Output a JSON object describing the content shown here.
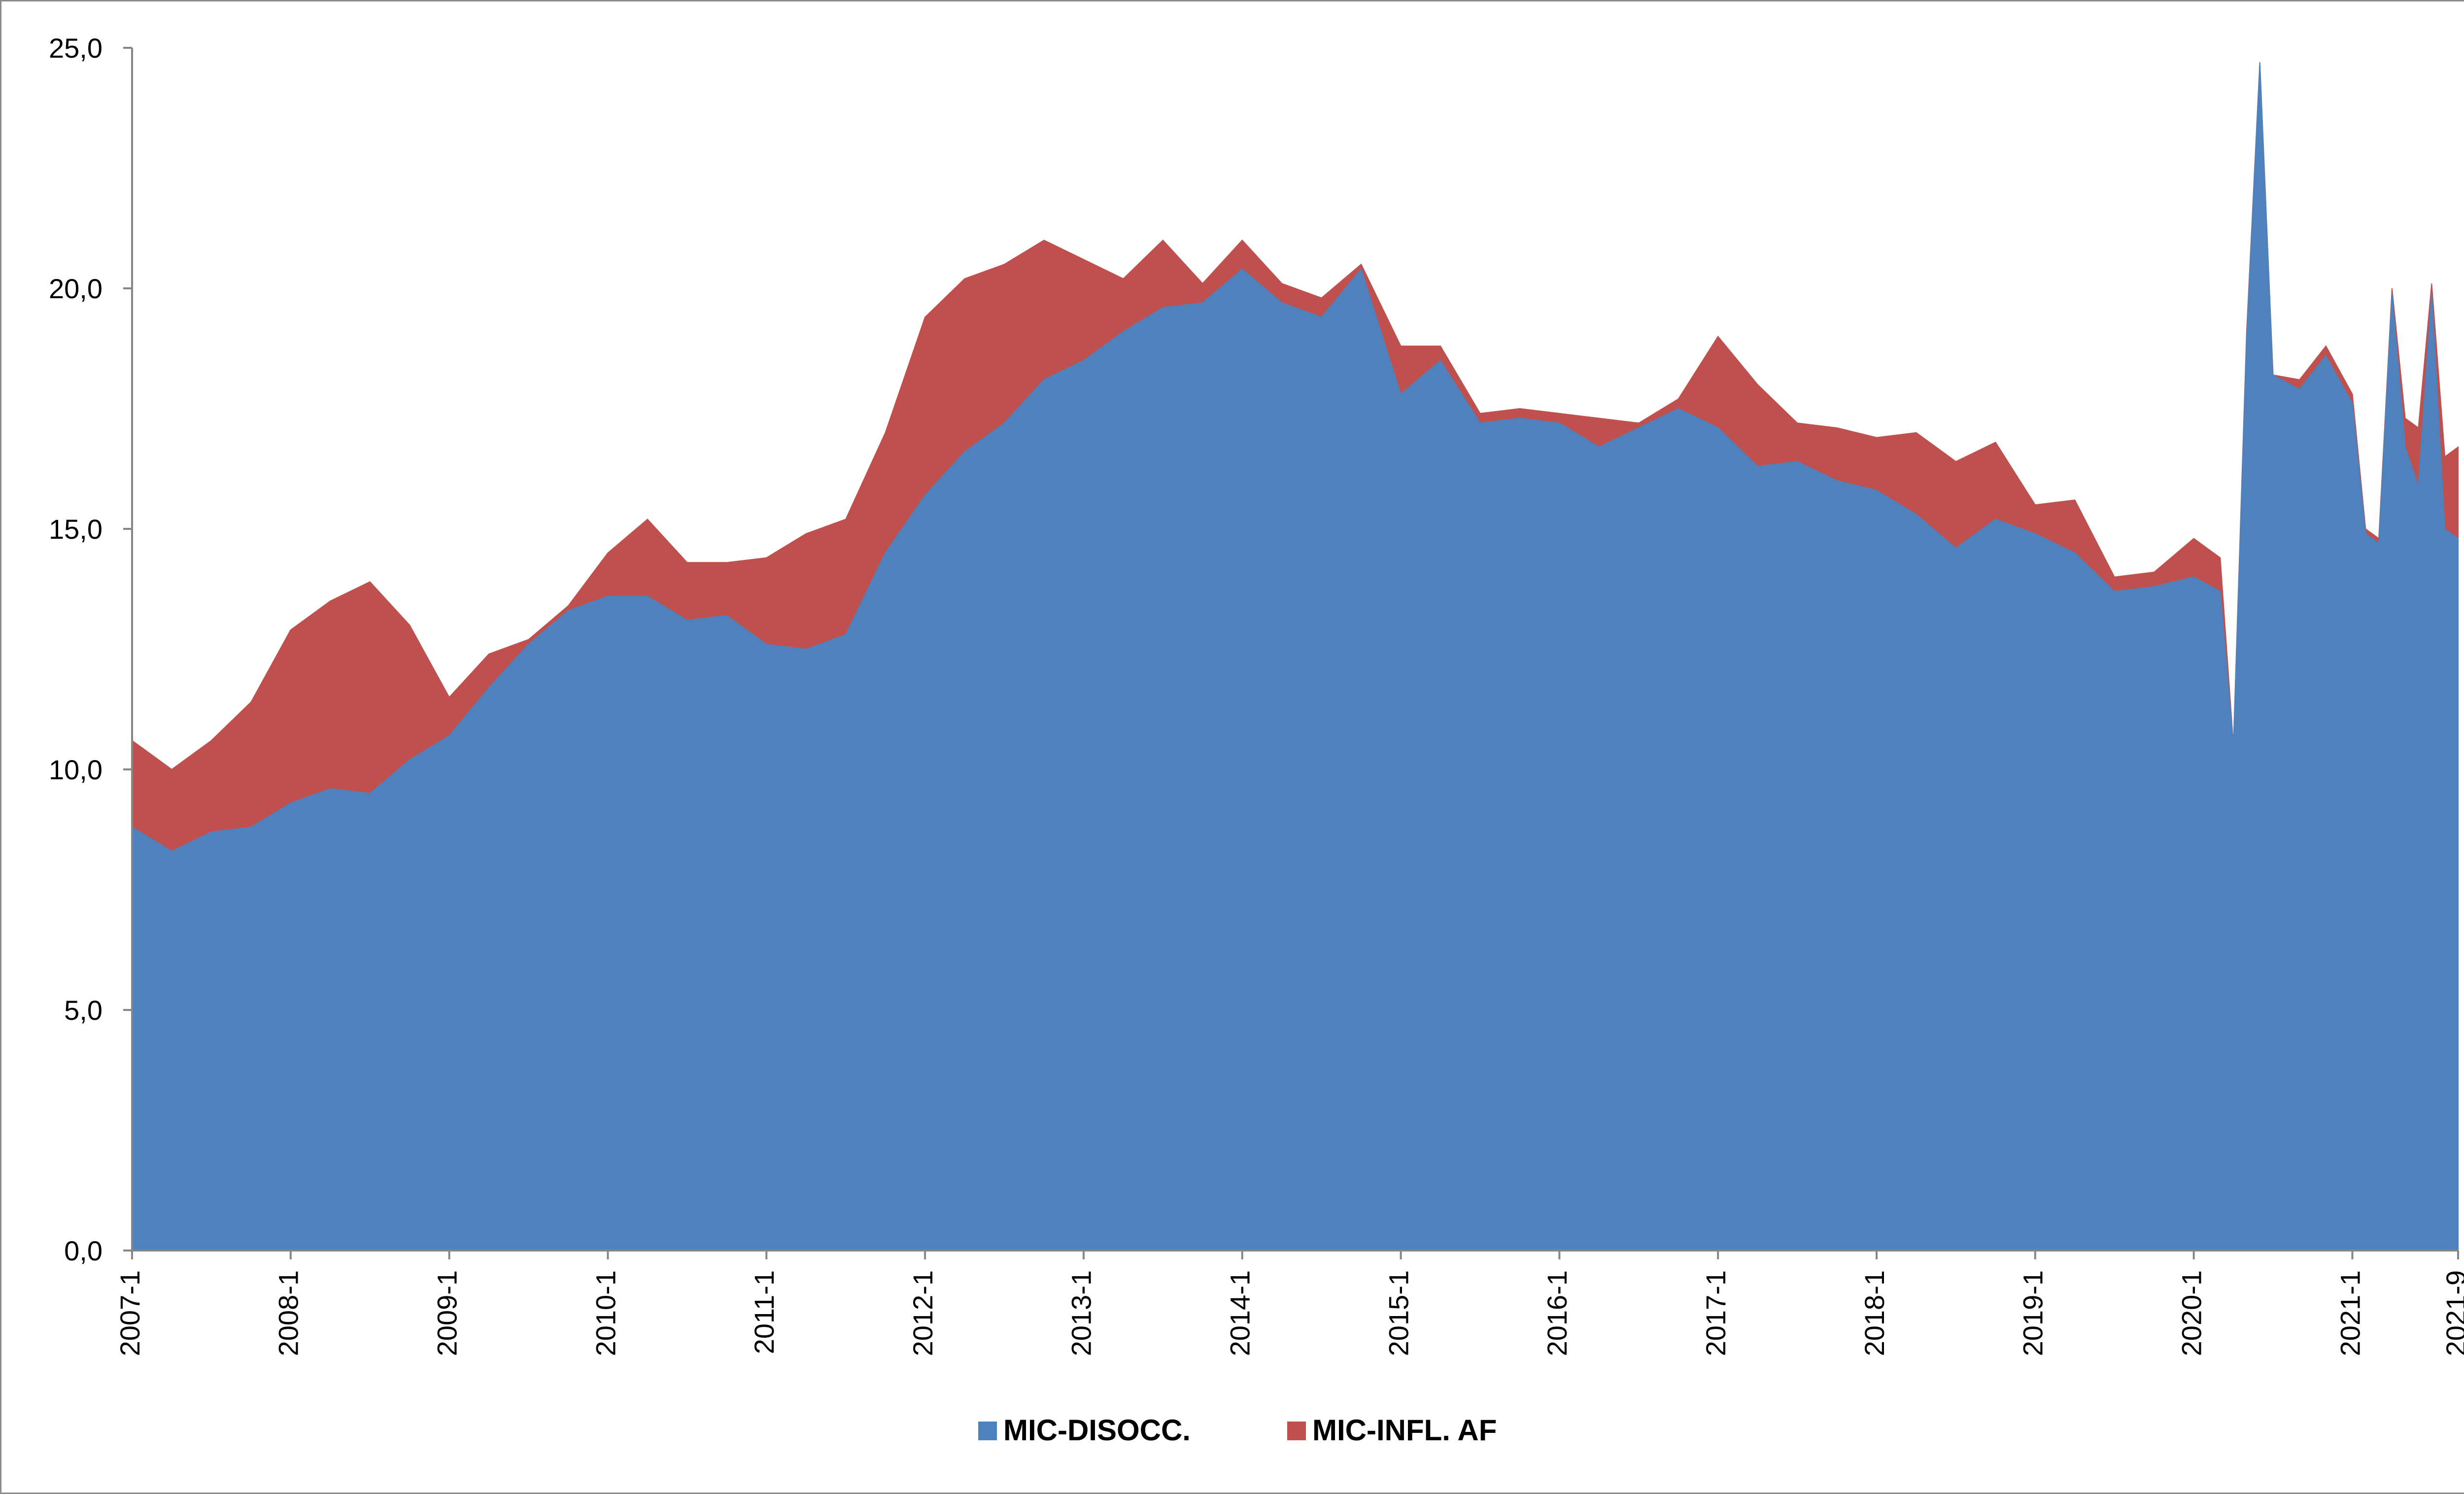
{
  "chart_data": {
    "type": "area",
    "stacked": true,
    "title": "",
    "xlabel": "",
    "ylabel": "",
    "ylim": [
      0,
      25
    ],
    "yticks": [
      "0,0",
      "5,0",
      "10,0",
      "15,0",
      "20,0",
      "25,0"
    ],
    "ytick_values": [
      0,
      5,
      10,
      15,
      20,
      25
    ],
    "x_start": "2007-1",
    "x_end": "2021-9",
    "xtick_labels": [
      "2007-1",
      "2008-1",
      "2009-1",
      "2010-1",
      "2011-1",
      "2012-1",
      "2013-1",
      "2014-1",
      "2015-1",
      "2016-1",
      "2017-1",
      "2018-1",
      "2019-1",
      "2020-1",
      "2021-1",
      "2021-9"
    ],
    "grid": false,
    "legend_position": "bottom",
    "series": [
      {
        "name": "MIC-DISOCC.",
        "color": "#4f81bd",
        "points": [
          [
            "2007-1",
            8.8
          ],
          [
            "2007-4",
            8.3
          ],
          [
            "2007-7",
            8.7
          ],
          [
            "2007-10",
            8.8
          ],
          [
            "2008-1",
            9.3
          ],
          [
            "2008-4",
            9.6
          ],
          [
            "2008-7",
            9.5
          ],
          [
            "2008-10",
            10.2
          ],
          [
            "2009-1",
            10.7
          ],
          [
            "2009-4",
            11.7
          ],
          [
            "2009-7",
            12.6
          ],
          [
            "2009-10",
            13.3
          ],
          [
            "2010-1",
            13.6
          ],
          [
            "2010-4",
            13.6
          ],
          [
            "2010-7",
            13.1
          ],
          [
            "2010-10",
            13.2
          ],
          [
            "2011-1",
            12.6
          ],
          [
            "2011-4",
            12.5
          ],
          [
            "2011-7",
            12.8
          ],
          [
            "2011-10",
            14.5
          ],
          [
            "2012-1",
            15.7
          ],
          [
            "2012-4",
            16.6
          ],
          [
            "2012-7",
            17.2
          ],
          [
            "2012-10",
            18.1
          ],
          [
            "2013-1",
            18.5
          ],
          [
            "2013-4",
            19.1
          ],
          [
            "2013-7",
            19.6
          ],
          [
            "2013-10",
            19.7
          ],
          [
            "2014-1",
            20.4
          ],
          [
            "2014-4",
            19.7
          ],
          [
            "2014-7",
            19.4
          ],
          [
            "2014-10",
            20.4
          ],
          [
            "2015-1",
            17.8
          ],
          [
            "2015-4",
            18.5
          ],
          [
            "2015-7",
            17.2
          ],
          [
            "2015-10",
            17.3
          ],
          [
            "2016-1",
            17.2
          ],
          [
            "2016-4",
            16.7
          ],
          [
            "2016-7",
            17.1
          ],
          [
            "2016-10",
            17.5
          ],
          [
            "2017-1",
            17.1
          ],
          [
            "2017-4",
            16.3
          ],
          [
            "2017-7",
            16.4
          ],
          [
            "2017-10",
            16.0
          ],
          [
            "2018-1",
            15.8
          ],
          [
            "2018-4",
            15.3
          ],
          [
            "2018-7",
            14.6
          ],
          [
            "2018-10",
            15.2
          ],
          [
            "2019-1",
            14.9
          ],
          [
            "2019-4",
            14.5
          ],
          [
            "2019-7",
            13.7
          ],
          [
            "2019-10",
            13.8
          ],
          [
            "2020-1",
            14.0
          ],
          [
            "2020-3",
            13.7
          ],
          [
            "2020-4",
            10.5
          ],
          [
            "2020-5",
            19.0
          ],
          [
            "2020-6",
            24.7
          ],
          [
            "2020-7",
            18.2
          ],
          [
            "2020-9",
            17.9
          ],
          [
            "2020-11",
            18.6
          ],
          [
            "2021-1",
            17.6
          ],
          [
            "2021-2",
            14.9
          ],
          [
            "2021-3",
            14.7
          ],
          [
            "2021-4",
            19.9
          ],
          [
            "2021-5",
            16.7
          ],
          [
            "2021-6",
            15.9
          ],
          [
            "2021-7",
            19.9
          ],
          [
            "2021-8",
            15.0
          ],
          [
            "2021-9",
            14.8
          ]
        ]
      },
      {
        "name": "MIC-INFL. AF",
        "color": "#c0504d",
        "points": [
          [
            "2007-1",
            1.8
          ],
          [
            "2007-4",
            1.7
          ],
          [
            "2007-7",
            1.9
          ],
          [
            "2007-10",
            2.6
          ],
          [
            "2008-1",
            3.6
          ],
          [
            "2008-4",
            3.9
          ],
          [
            "2008-7",
            4.4
          ],
          [
            "2008-10",
            2.8
          ],
          [
            "2009-1",
            0.8
          ],
          [
            "2009-4",
            0.7
          ],
          [
            "2009-7",
            0.1
          ],
          [
            "2009-10",
            0.1
          ],
          [
            "2010-1",
            0.9
          ],
          [
            "2010-4",
            1.6
          ],
          [
            "2010-7",
            1.2
          ],
          [
            "2010-10",
            1.1
          ],
          [
            "2011-1",
            1.8
          ],
          [
            "2011-4",
            2.4
          ],
          [
            "2011-7",
            2.4
          ],
          [
            "2011-10",
            2.5
          ],
          [
            "2012-1",
            3.7
          ],
          [
            "2012-4",
            3.6
          ],
          [
            "2012-7",
            3.3
          ],
          [
            "2012-10",
            2.9
          ],
          [
            "2013-1",
            2.1
          ],
          [
            "2013-4",
            1.1
          ],
          [
            "2013-7",
            1.4
          ],
          [
            "2013-10",
            0.4
          ],
          [
            "2014-1",
            0.6
          ],
          [
            "2014-4",
            0.4
          ],
          [
            "2014-7",
            0.4
          ],
          [
            "2014-10",
            0.1
          ],
          [
            "2015-1",
            1.0
          ],
          [
            "2015-4",
            0.3
          ],
          [
            "2015-7",
            0.2
          ],
          [
            "2015-10",
            0.2
          ],
          [
            "2016-1",
            0.2
          ],
          [
            "2016-4",
            0.6
          ],
          [
            "2016-7",
            0.1
          ],
          [
            "2016-10",
            0.2
          ],
          [
            "2017-1",
            1.9
          ],
          [
            "2017-4",
            1.7
          ],
          [
            "2017-7",
            0.8
          ],
          [
            "2017-10",
            1.1
          ],
          [
            "2018-1",
            1.1
          ],
          [
            "2018-4",
            1.7
          ],
          [
            "2018-7",
            1.8
          ],
          [
            "2018-10",
            1.6
          ],
          [
            "2019-1",
            0.6
          ],
          [
            "2019-4",
            1.1
          ],
          [
            "2019-7",
            0.3
          ],
          [
            "2019-10",
            0.3
          ],
          [
            "2020-1",
            0.8
          ],
          [
            "2020-3",
            0.7
          ],
          [
            "2020-4",
            0.0
          ],
          [
            "2020-5",
            0.1
          ],
          [
            "2020-6",
            0.0
          ],
          [
            "2020-7",
            0.0
          ],
          [
            "2020-9",
            0.2
          ],
          [
            "2020-11",
            0.2
          ],
          [
            "2021-1",
            0.2
          ],
          [
            "2021-2",
            0.1
          ],
          [
            "2021-3",
            0.1
          ],
          [
            "2021-4",
            0.1
          ],
          [
            "2021-5",
            0.6
          ],
          [
            "2021-6",
            1.2
          ],
          [
            "2021-7",
            0.2
          ],
          [
            "2021-8",
            1.5
          ],
          [
            "2021-9",
            1.9
          ]
        ]
      }
    ]
  }
}
